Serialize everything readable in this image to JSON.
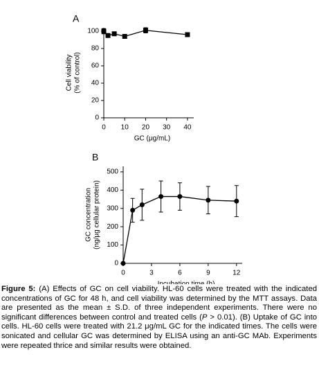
{
  "chart_data": [
    {
      "type": "line",
      "panel_label": "A",
      "ylabel": [
        "Cell viability",
        "(% of control)"
      ],
      "xlabel": "GC (μg/mL)",
      "x": [
        0,
        2,
        5,
        10,
        20,
        40
      ],
      "values": [
        100,
        95,
        97,
        94,
        101,
        96
      ],
      "errors": [
        3,
        1,
        1,
        1,
        3,
        1
      ],
      "marker": "square",
      "color": "#000000",
      "xlim": [
        0,
        43
      ],
      "xticks": [
        0,
        10,
        20,
        30,
        40
      ],
      "ylim": [
        0,
        104
      ],
      "yticks": [
        0,
        20,
        40,
        60,
        80,
        100
      ]
    },
    {
      "type": "line",
      "panel_label": "B",
      "ylabel": [
        "GC concentration",
        "(ng/µg cellular protein)"
      ],
      "xlabel": "Incubation time (h)",
      "x": [
        0,
        1,
        2,
        4,
        6,
        9,
        12
      ],
      "values": [
        0,
        290,
        320,
        365,
        365,
        345,
        340
      ],
      "errors": [
        0,
        65,
        85,
        85,
        75,
        75,
        85
      ],
      "marker": "circle",
      "color": "#000000",
      "xlim": [
        0,
        12.6
      ],
      "xticks": [
        0,
        3,
        6,
        9,
        12
      ],
      "ylim": [
        0,
        530
      ],
      "yticks": [
        0,
        100,
        200,
        300,
        400,
        500
      ]
    }
  ],
  "caption": {
    "label": "Figure 5:",
    "parts": [
      "(A) Effects of GC on cell viability. HL-60 cells were treated with the indicated concentrations of GC for 48 h, and cell viability was determined by the MTT assays. Data are presented as the mean ± S.D. of three independent experiments. There were no significant differences between control and treated cells (",
      "P",
      " > 0.01). (B) Uptake of GC into cells. HL-60 cells were treated with 21.2 μg/mL GC for the indicated times. The cells were sonicated and cellular GC was determined by ELISA using an anti-GC MAb. Experiments were repeated thrice and similar results were obtained."
    ]
  }
}
